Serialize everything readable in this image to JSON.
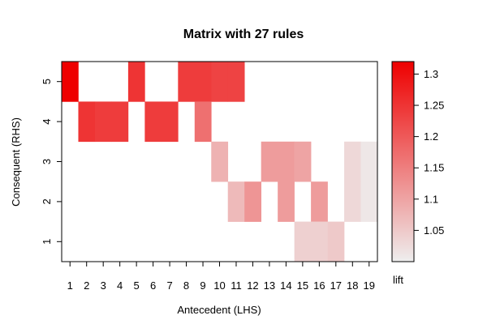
{
  "chart_data": {
    "type": "heatmap",
    "title": "Matrix with 27 rules",
    "xlabel": "Antecedent (LHS)",
    "ylabel": "Consequent (RHS)",
    "x_categories": [
      "1",
      "2",
      "3",
      "4",
      "5",
      "6",
      "7",
      "8",
      "9",
      "10",
      "11",
      "12",
      "13",
      "14",
      "15",
      "16",
      "17",
      "18",
      "19"
    ],
    "y_categories": [
      "1",
      "2",
      "3",
      "4",
      "5"
    ],
    "color_label": "lift",
    "color_range": [
      1.0,
      1.32
    ],
    "color_scale": {
      "low": "#eeeeee",
      "high": "#ee0000"
    },
    "colorbar_ticks": [
      "1.05",
      "1.1",
      "1.15",
      "1.2",
      "1.25",
      "1.3"
    ],
    "cells": [
      {
        "lhs": 1,
        "rhs": 5,
        "lift": 1.32
      },
      {
        "lhs": 5,
        "rhs": 5,
        "lift": 1.25
      },
      {
        "lhs": 8,
        "rhs": 5,
        "lift": 1.24
      },
      {
        "lhs": 9,
        "rhs": 5,
        "lift": 1.24
      },
      {
        "lhs": 10,
        "rhs": 5,
        "lift": 1.23
      },
      {
        "lhs": 11,
        "rhs": 5,
        "lift": 1.23
      },
      {
        "lhs": 2,
        "rhs": 4,
        "lift": 1.25
      },
      {
        "lhs": 3,
        "rhs": 4,
        "lift": 1.24
      },
      {
        "lhs": 4,
        "rhs": 4,
        "lift": 1.24
      },
      {
        "lhs": 6,
        "rhs": 4,
        "lift": 1.24
      },
      {
        "lhs": 7,
        "rhs": 4,
        "lift": 1.24
      },
      {
        "lhs": 9,
        "rhs": 4,
        "lift": 1.17
      },
      {
        "lhs": 10,
        "rhs": 3,
        "lift": 1.08
      },
      {
        "lhs": 13,
        "rhs": 3,
        "lift": 1.11
      },
      {
        "lhs": 14,
        "rhs": 3,
        "lift": 1.11
      },
      {
        "lhs": 15,
        "rhs": 3,
        "lift": 1.1
      },
      {
        "lhs": 18,
        "rhs": 3,
        "lift": 1.03
      },
      {
        "lhs": 19,
        "rhs": 3,
        "lift": 1.01
      },
      {
        "lhs": 11,
        "rhs": 2,
        "lift": 1.07
      },
      {
        "lhs": 12,
        "rhs": 2,
        "lift": 1.12
      },
      {
        "lhs": 14,
        "rhs": 2,
        "lift": 1.11
      },
      {
        "lhs": 16,
        "rhs": 2,
        "lift": 1.11
      },
      {
        "lhs": 18,
        "rhs": 2,
        "lift": 1.03
      },
      {
        "lhs": 19,
        "rhs": 2,
        "lift": 1.01
      },
      {
        "lhs": 15,
        "rhs": 1,
        "lift": 1.04
      },
      {
        "lhs": 16,
        "rhs": 1,
        "lift": 1.04
      },
      {
        "lhs": 17,
        "rhs": 1,
        "lift": 1.05
      }
    ]
  }
}
